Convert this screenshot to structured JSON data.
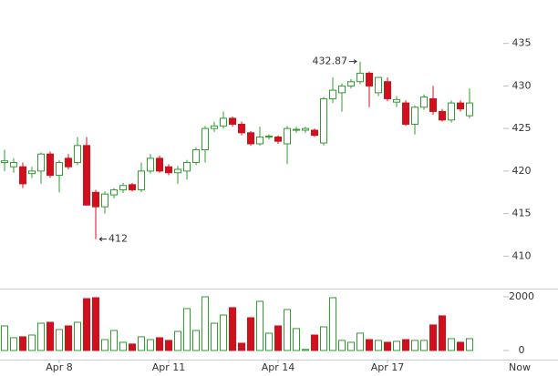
{
  "chart_data": {
    "type": "candlestick",
    "categories": [
      null,
      null,
      null,
      null,
      null,
      null,
      "Apr 8",
      null,
      null,
      null,
      null,
      null,
      null,
      null,
      null,
      null,
      null,
      null,
      "Apr 11",
      null,
      null,
      null,
      null,
      null,
      null,
      null,
      null,
      null,
      null,
      null,
      "Apr 14",
      null,
      null,
      null,
      null,
      null,
      null,
      null,
      null,
      null,
      null,
      null,
      "Apr 17",
      null,
      null,
      null,
      null,
      null,
      null,
      null,
      null,
      null
    ],
    "x_end_label": "Now",
    "open": [
      421,
      420.5,
      420.5,
      419.7,
      420,
      422,
      419.5,
      421.5,
      421,
      423,
      417.5,
      415.8,
      417.2,
      417.8,
      418.4,
      417.8,
      420,
      421.5,
      420.5,
      419.8,
      420,
      421,
      422.5,
      425,
      425.3,
      426.2,
      425.5,
      424.5,
      423.2,
      424,
      424,
      423.2,
      424.8,
      424.8,
      424.8,
      423.3,
      428.5,
      429.2,
      430,
      430.5,
      431.5,
      429.2,
      430.5,
      428.1,
      428,
      425.5,
      427.5,
      428.5,
      427,
      426,
      428,
      426.5
    ],
    "high": [
      422.5,
      421.5,
      421,
      420.5,
      422.2,
      422.3,
      421.3,
      422,
      424,
      424,
      417.8,
      417.6,
      418,
      418.6,
      418.6,
      421,
      422,
      421.8,
      420.8,
      420.6,
      421.3,
      422.8,
      425.3,
      425.8,
      427,
      426.4,
      425.8,
      424.7,
      425.2,
      424.3,
      424.2,
      425.3,
      425.2,
      425.2,
      425,
      428.7,
      431,
      430.3,
      430.8,
      432.87,
      431.7,
      431,
      431,
      428.8,
      428.3,
      427.7,
      429,
      430,
      427.3,
      428.3,
      428.3,
      429.7
    ],
    "low": [
      420,
      419.8,
      418,
      419.2,
      418.5,
      419.2,
      417.5,
      420.2,
      420.7,
      416,
      412,
      415,
      416.8,
      417.4,
      417.6,
      417.5,
      419.7,
      419.8,
      419.5,
      418.5,
      419,
      420.7,
      421,
      424.6,
      425,
      425.2,
      424.2,
      423,
      423,
      423.7,
      423.2,
      420.8,
      424.5,
      424.5,
      424,
      423,
      428,
      427,
      429.7,
      430.2,
      427.5,
      428.8,
      428.2,
      427.5,
      425.3,
      424.3,
      427.2,
      426.6,
      425.8,
      425.7,
      427,
      426.2
    ],
    "close": [
      421.2,
      421,
      418.5,
      420,
      422,
      419.5,
      421,
      420.5,
      423,
      416,
      415.8,
      417.3,
      417.8,
      418.3,
      417.8,
      420,
      421.5,
      420,
      419.8,
      420.2,
      421,
      422.5,
      425,
      425.3,
      426.2,
      425.5,
      424.5,
      423.2,
      424,
      424.1,
      423.5,
      425,
      424.9,
      425,
      424.2,
      428.5,
      429.5,
      430,
      430.5,
      431.5,
      430,
      431,
      428.5,
      428.4,
      425.5,
      427.5,
      428.7,
      427,
      426,
      428,
      427.3,
      428
    ],
    "volume": [
      915,
      475,
      510,
      575,
      1015,
      1050,
      780,
      915,
      1050,
      1930,
      1965,
      405,
      745,
      305,
      240,
      510,
      405,
      475,
      375,
      710,
      1560,
      745,
      2000,
      1015,
      1320,
      1595,
      270,
      1220,
      1830,
      645,
      915,
      1525,
      815,
      40,
      575,
      880,
      1965,
      375,
      305,
      645,
      405,
      375,
      305,
      340,
      405,
      375,
      375,
      950,
      1290,
      440,
      305,
      440
    ],
    "up_color": "#2e9e2e",
    "down_color": "#d0101c",
    "ylim": [
      406.4,
      440.1
    ],
    "yticks": [
      410,
      415,
      420,
      425,
      430,
      435
    ],
    "volume_ylim": [
      -340,
      2270
    ],
    "volume_ticks": [
      0,
      2000
    ],
    "annotations": [
      432.87,
      412
    ]
  }
}
